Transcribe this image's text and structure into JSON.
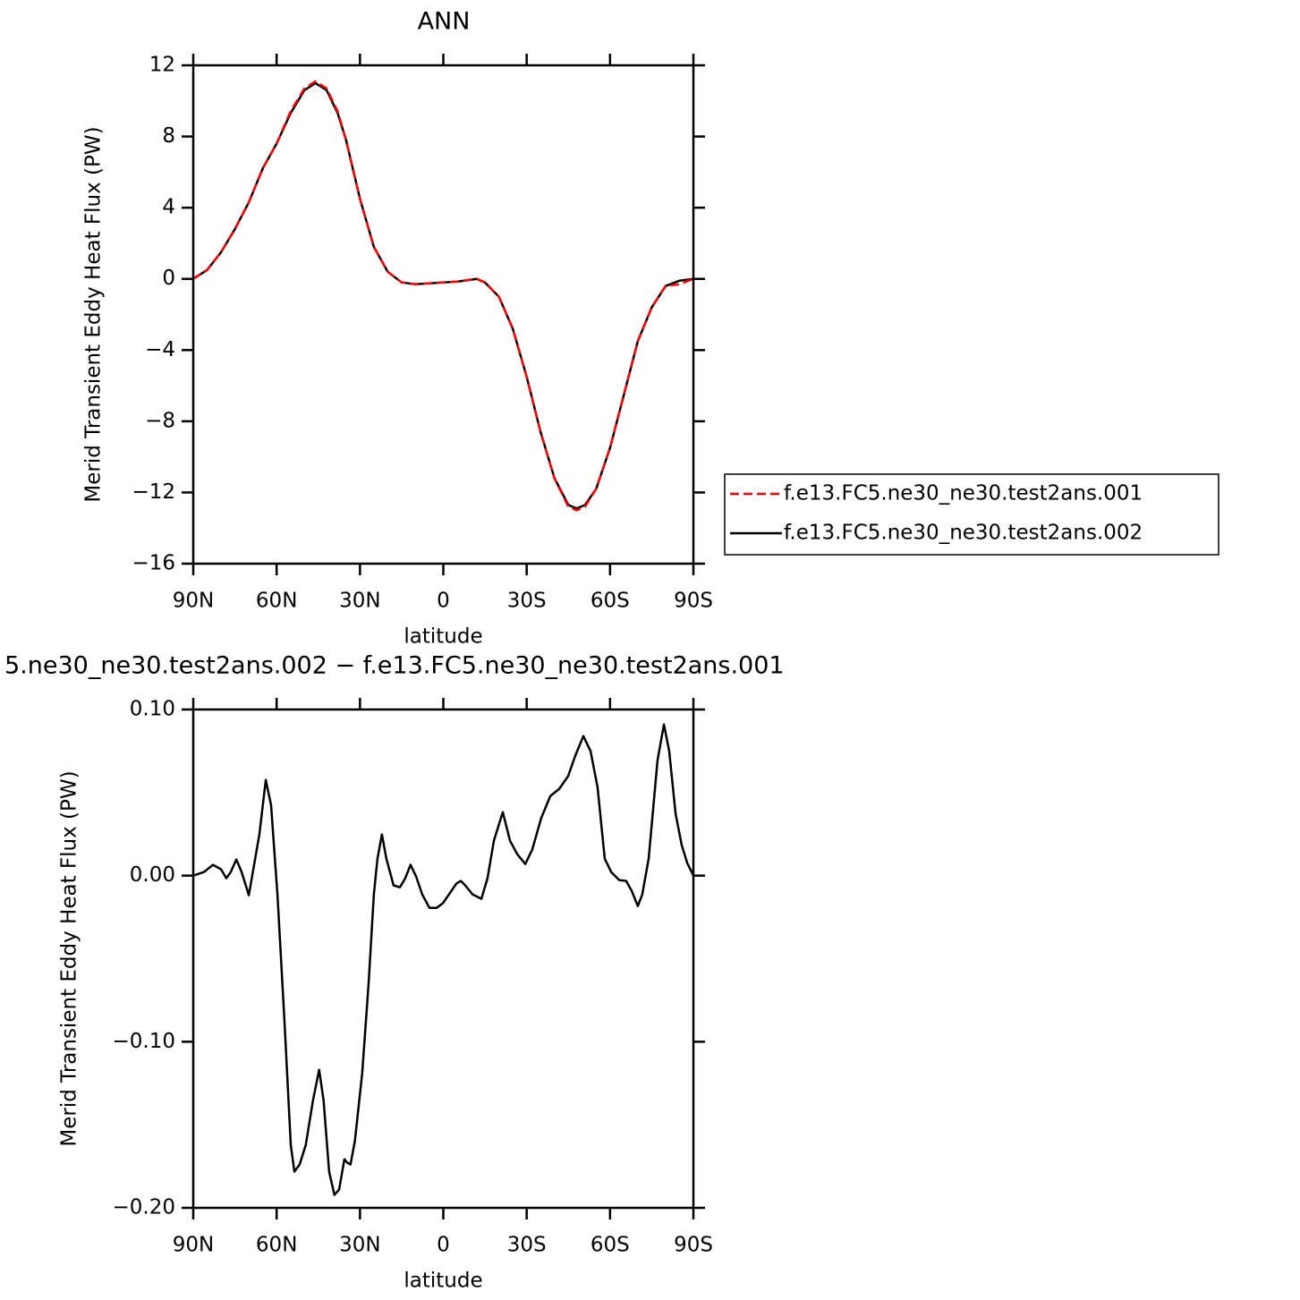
{
  "chart_data": [
    {
      "type": "line",
      "title": "ANN",
      "x_label": "latitude",
      "y_label": "Merid Transient Eddy Heat Flux (PW)",
      "x": [
        90,
        85,
        80,
        75,
        70,
        65,
        60,
        55,
        50,
        46,
        42,
        38,
        35,
        30,
        25,
        20,
        15,
        10,
        5,
        0,
        -5,
        -12,
        -15,
        -20,
        -25,
        -30,
        -35,
        -40,
        -45,
        -48,
        -51,
        -55,
        -60,
        -65,
        -70,
        -75,
        -80,
        -85,
        -90
      ],
      "series": [
        {
          "name": "f.e13.FC5.ne30_ne30.test2ans.001",
          "color": "#ff0000",
          "dash": true,
          "values": [
            0,
            0.5,
            1.5,
            2.8,
            4.3,
            6.2,
            7.6,
            9.4,
            10.7,
            11.1,
            10.7,
            9.4,
            7.8,
            4.5,
            1.8,
            0.4,
            -0.2,
            -0.3,
            -0.25,
            -0.2,
            -0.15,
            0,
            -0.2,
            -1.0,
            -2.8,
            -5.5,
            -8.6,
            -11.2,
            -12.8,
            -13.0,
            -12.8,
            -11.8,
            -9.5,
            -6.5,
            -3.5,
            -1.6,
            -0.4,
            -0.3,
            0
          ]
        },
        {
          "name": "f.e13.FC5.ne30_ne30.test2ans.002",
          "color": "#000000",
          "dash": false,
          "values": [
            0,
            0.5,
            1.5,
            2.8,
            4.3,
            6.2,
            7.6,
            9.3,
            10.6,
            11.0,
            10.6,
            9.3,
            7.8,
            4.5,
            1.8,
            0.4,
            -0.2,
            -0.3,
            -0.25,
            -0.2,
            -0.15,
            0,
            -0.2,
            -1.0,
            -2.8,
            -5.5,
            -8.6,
            -11.2,
            -12.7,
            -12.9,
            -12.7,
            -11.8,
            -9.5,
            -6.5,
            -3.5,
            -1.6,
            -0.4,
            -0.1,
            0
          ]
        }
      ],
      "xlim": [
        90,
        -90
      ],
      "xticks": [
        {
          "value": 90,
          "label": "90N"
        },
        {
          "value": 60,
          "label": "60N"
        },
        {
          "value": 30,
          "label": "30N"
        },
        0,
        {
          "value": -30,
          "label": "30S"
        },
        {
          "value": -60,
          "label": "60S"
        },
        {
          "value": -90,
          "label": "90S"
        }
      ],
      "ylim": [
        -16,
        12
      ],
      "yticks": [
        12,
        8,
        4,
        0,
        {
          "value": -4,
          "label": "−4"
        },
        {
          "value": -8,
          "label": "−8"
        },
        {
          "value": -12,
          "label": "−12"
        },
        {
          "value": -16,
          "label": "−16"
        }
      ],
      "legend": "right"
    },
    {
      "type": "line",
      "title": "5.ne30_ne30.test2ans.002 − f.e13.FC5.ne30_ne30.test2ans.001",
      "x_label": "latitude",
      "y_label": "Merid Transient Eddy Heat Flux (PW)",
      "x": [
        90,
        86.1,
        82.9,
        80.0,
        78.1,
        76.5,
        74.5,
        72.6,
        70.0,
        66.2,
        63.9,
        62.0,
        59.7,
        57.2,
        54.9,
        53.6,
        51.7,
        49.5,
        46.9,
        44.7,
        43.1,
        41.1,
        39.2,
        37.5,
        35.6,
        34.6,
        33.4,
        31.8,
        29.2,
        26.9,
        25.0,
        23.7,
        22.1,
        20.5,
        17.9,
        15.6,
        13.7,
        11.8,
        9.8,
        7.6,
        5.0,
        2.4,
        0.2,
        -4.7,
        -6.3,
        -7.9,
        -10.5,
        -13.7,
        -15.9,
        -18.2,
        -21.4,
        -24.0,
        -26.6,
        -29.5,
        -32.0,
        -35.2,
        -38.5,
        -41.7,
        -44.9,
        -47.5,
        -50.4,
        -53.0,
        -55.5,
        -58.1,
        -60.4,
        -63.3,
        -65.8,
        -67.8,
        -70.0,
        -71.6,
        -73.9,
        -77.1,
        -79.4,
        -81.3,
        -83.6,
        -85.8,
        -87.8,
        -90
      ],
      "values": [
        0,
        0.0022,
        0.0065,
        0.0038,
        -0.0016,
        0.0022,
        0.0097,
        0.0022,
        -0.0118,
        0.0248,
        0.0576,
        0.0425,
        -0.0113,
        -0.0867,
        -0.1621,
        -0.1782,
        -0.1739,
        -0.1621,
        -0.1352,
        -0.1169,
        -0.1352,
        -0.1782,
        -0.1922,
        -0.189,
        -0.1707,
        -0.1728,
        -0.1739,
        -0.1594,
        -0.119,
        -0.0652,
        -0.0113,
        0.0102,
        0.0248,
        0.0102,
        -0.0059,
        -0.007,
        -0.0016,
        0.0065,
        -0.0005,
        -0.0113,
        -0.0194,
        -0.0194,
        -0.0167,
        -0.0048,
        -0.0032,
        -0.0059,
        -0.0113,
        -0.014,
        -0.0016,
        0.021,
        0.0382,
        0.021,
        0.0129,
        0.007,
        0.0156,
        0.0345,
        0.0479,
        0.0522,
        0.0598,
        0.0722,
        0.084,
        0.0749,
        0.0533,
        0.0102,
        0.0022,
        -0.0027,
        -0.0032,
        -0.0092,
        -0.0183,
        -0.0113,
        0.0102,
        0.0695,
        0.091,
        0.0749,
        0.0372,
        0.0183,
        0.0075,
        0
      ],
      "color": "#000000",
      "xlim": [
        90,
        -90
      ],
      "xticks": [
        {
          "value": 90,
          "label": "90N"
        },
        {
          "value": 60,
          "label": "60N"
        },
        {
          "value": 30,
          "label": "30N"
        },
        0,
        {
          "value": -30,
          "label": "30S"
        },
        {
          "value": -60,
          "label": "60S"
        },
        {
          "value": -90,
          "label": "90S"
        }
      ],
      "ylim": [
        -0.2,
        0.1
      ],
      "yticks": [
        {
          "value": 0.1,
          "label": "0.10"
        },
        {
          "value": 0,
          "label": "0.00"
        },
        {
          "value": -0.1,
          "label": "−0.10"
        },
        {
          "value": -0.2,
          "label": "−0.20"
        }
      ]
    }
  ]
}
